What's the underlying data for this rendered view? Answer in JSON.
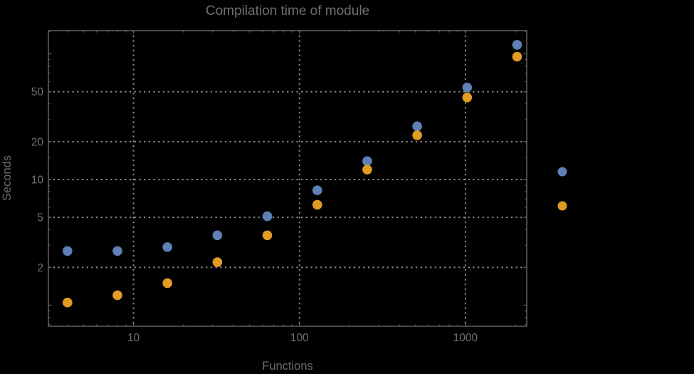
{
  "page": {
    "background_color": "#000000"
  },
  "chart_data": {
    "type": "scatter",
    "title": "Compilation time of module",
    "xlabel": "Functions",
    "ylabel": "Seconds",
    "x_scale": "log",
    "y_scale": "log",
    "xlim": [
      3.07,
      2340
    ],
    "ylim": [
      0.68,
      153
    ],
    "grid": "dotted, at labeled ticks only",
    "x": [
      4,
      8,
      16,
      32,
      64,
      128,
      256,
      512,
      1024,
      2048
    ],
    "series": [
      {
        "name": "series-1-blue",
        "color": "#5E81B5",
        "values": [
          2.7,
          2.7,
          2.9,
          3.6,
          5.1,
          8.2,
          14,
          26.5,
          54,
          118
        ]
      },
      {
        "name": "series-2-orange",
        "color": "#E19C24",
        "values": [
          1.05,
          1.2,
          1.5,
          2.2,
          3.6,
          6.3,
          12,
          22.5,
          45,
          95
        ]
      }
    ],
    "x_ticks_labeled": [
      10,
      100,
      1000
    ],
    "x_ticks_minor": [
      4,
      5,
      6,
      7,
      8,
      9,
      20,
      30,
      40,
      50,
      60,
      70,
      80,
      90,
      200,
      300,
      400,
      500,
      600,
      700,
      800,
      900,
      2000
    ],
    "y_ticks_labeled": [
      2,
      5,
      10,
      20,
      50
    ],
    "y_ticks_unlabeled_major": [
      1,
      100
    ],
    "y_ticks_minor": [
      0.7,
      0.8,
      0.9,
      3,
      4,
      6,
      7,
      8,
      9,
      15,
      30,
      40,
      60,
      70,
      80,
      90,
      150
    ],
    "legend": {
      "position": "right-of-frame",
      "markers_only": true,
      "marker_colors": [
        "#5E81B5",
        "#E19C24"
      ]
    }
  },
  "colors": {
    "frame": "#5d5d5d",
    "gridline": "#8a8a8a",
    "text": "#6e6e6e",
    "series_blue": "#5E81B5",
    "series_orange": "#E19C24"
  }
}
